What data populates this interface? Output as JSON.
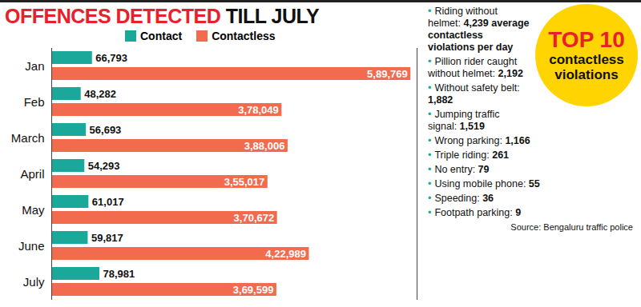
{
  "chart_data": {
    "type": "bar",
    "title": "OFFENCES DETECTED TILL JULY",
    "orientation": "horizontal",
    "categories": [
      "Jan",
      "Feb",
      "March",
      "April",
      "May",
      "June",
      "July"
    ],
    "series": [
      {
        "name": "Contact",
        "color": "#1aa89a",
        "values": [
          66793,
          48282,
          56693,
          54293,
          61017,
          59817,
          78981
        ],
        "value_labels": [
          "66,793",
          "48,282",
          "56,693",
          "54,293",
          "61,017",
          "59,817",
          "78,981"
        ]
      },
      {
        "name": "Contactless",
        "color": "#f26b4f",
        "values": [
          589769,
          378049,
          388006,
          355017,
          370672,
          422989,
          369599
        ],
        "value_labels": [
          "5,89,769",
          "3,78,049",
          "3,88,006",
          "3,55,017",
          "3,70,672",
          "4,22,989",
          "3,69,599"
        ]
      }
    ],
    "xlim": [
      0,
      600000
    ],
    "xticks": [],
    "data_labels": true,
    "tick_labels": "y",
    "legend": "top",
    "grid": false
  },
  "side_panel": {
    "title": "TOP 10",
    "subtitle": "contactless violations",
    "items": [
      {
        "label": "Riding without helmet:",
        "value": "4,239 average contactless violations per day"
      },
      {
        "label": "Pillion rider caught without helmet:",
        "value": "2,192"
      },
      {
        "label": "Without safety belt:",
        "value": "1,882"
      },
      {
        "label": "Jumping traffic signal:",
        "value": "1,519"
      },
      {
        "label": "Wrong parking:",
        "value": "1,166"
      },
      {
        "label": "Triple riding:",
        "value": "261"
      },
      {
        "label": "No entry:",
        "value": "79"
      },
      {
        "label": "Using mobile phone:",
        "value": "55"
      },
      {
        "label": "Speeding:",
        "value": "36"
      },
      {
        "label": "Footpath parking:",
        "value": "9"
      }
    ],
    "source": "Source: Bengaluru traffic police"
  }
}
